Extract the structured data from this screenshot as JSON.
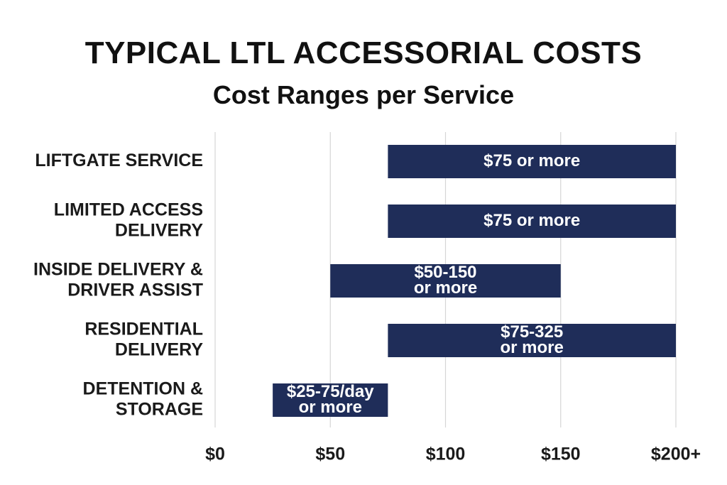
{
  "chart_data": {
    "type": "bar",
    "orientation": "horizontal-range",
    "title": "TYPICAL LTL ACCESSORIAL COSTS",
    "subtitle": "Cost Ranges per Service",
    "xlabel": "",
    "ylabel": "",
    "xlim": [
      0,
      200
    ],
    "x_ticks": [
      0,
      50,
      100,
      150,
      200
    ],
    "x_tick_labels": [
      "$0",
      "$50",
      "$100",
      "$150",
      "$200+"
    ],
    "grid": "vertical",
    "bar_color": "#1f2d59",
    "categories": [
      {
        "label_lines": [
          "LIFTGATE SERVICE"
        ],
        "start": 75,
        "end": 200,
        "bar_label_lines": [
          "$75 or more"
        ]
      },
      {
        "label_lines": [
          "LIMITED ACCESS",
          "DELIVERY"
        ],
        "start": 75,
        "end": 200,
        "bar_label_lines": [
          "$75 or more"
        ]
      },
      {
        "label_lines": [
          "INSIDE DELIVERY &",
          "DRIVER ASSIST"
        ],
        "start": 50,
        "end": 150,
        "bar_label_lines": [
          "$50-150",
          "or more"
        ]
      },
      {
        "label_lines": [
          "RESIDENTIAL",
          "DELIVERY"
        ],
        "start": 75,
        "end": 200,
        "bar_label_lines": [
          "$75-325",
          "or more"
        ]
      },
      {
        "label_lines": [
          "DETENTION &",
          "STORAGE"
        ],
        "start": 25,
        "end": 75,
        "bar_label_lines": [
          "$25-75/day",
          "or more"
        ]
      }
    ]
  }
}
